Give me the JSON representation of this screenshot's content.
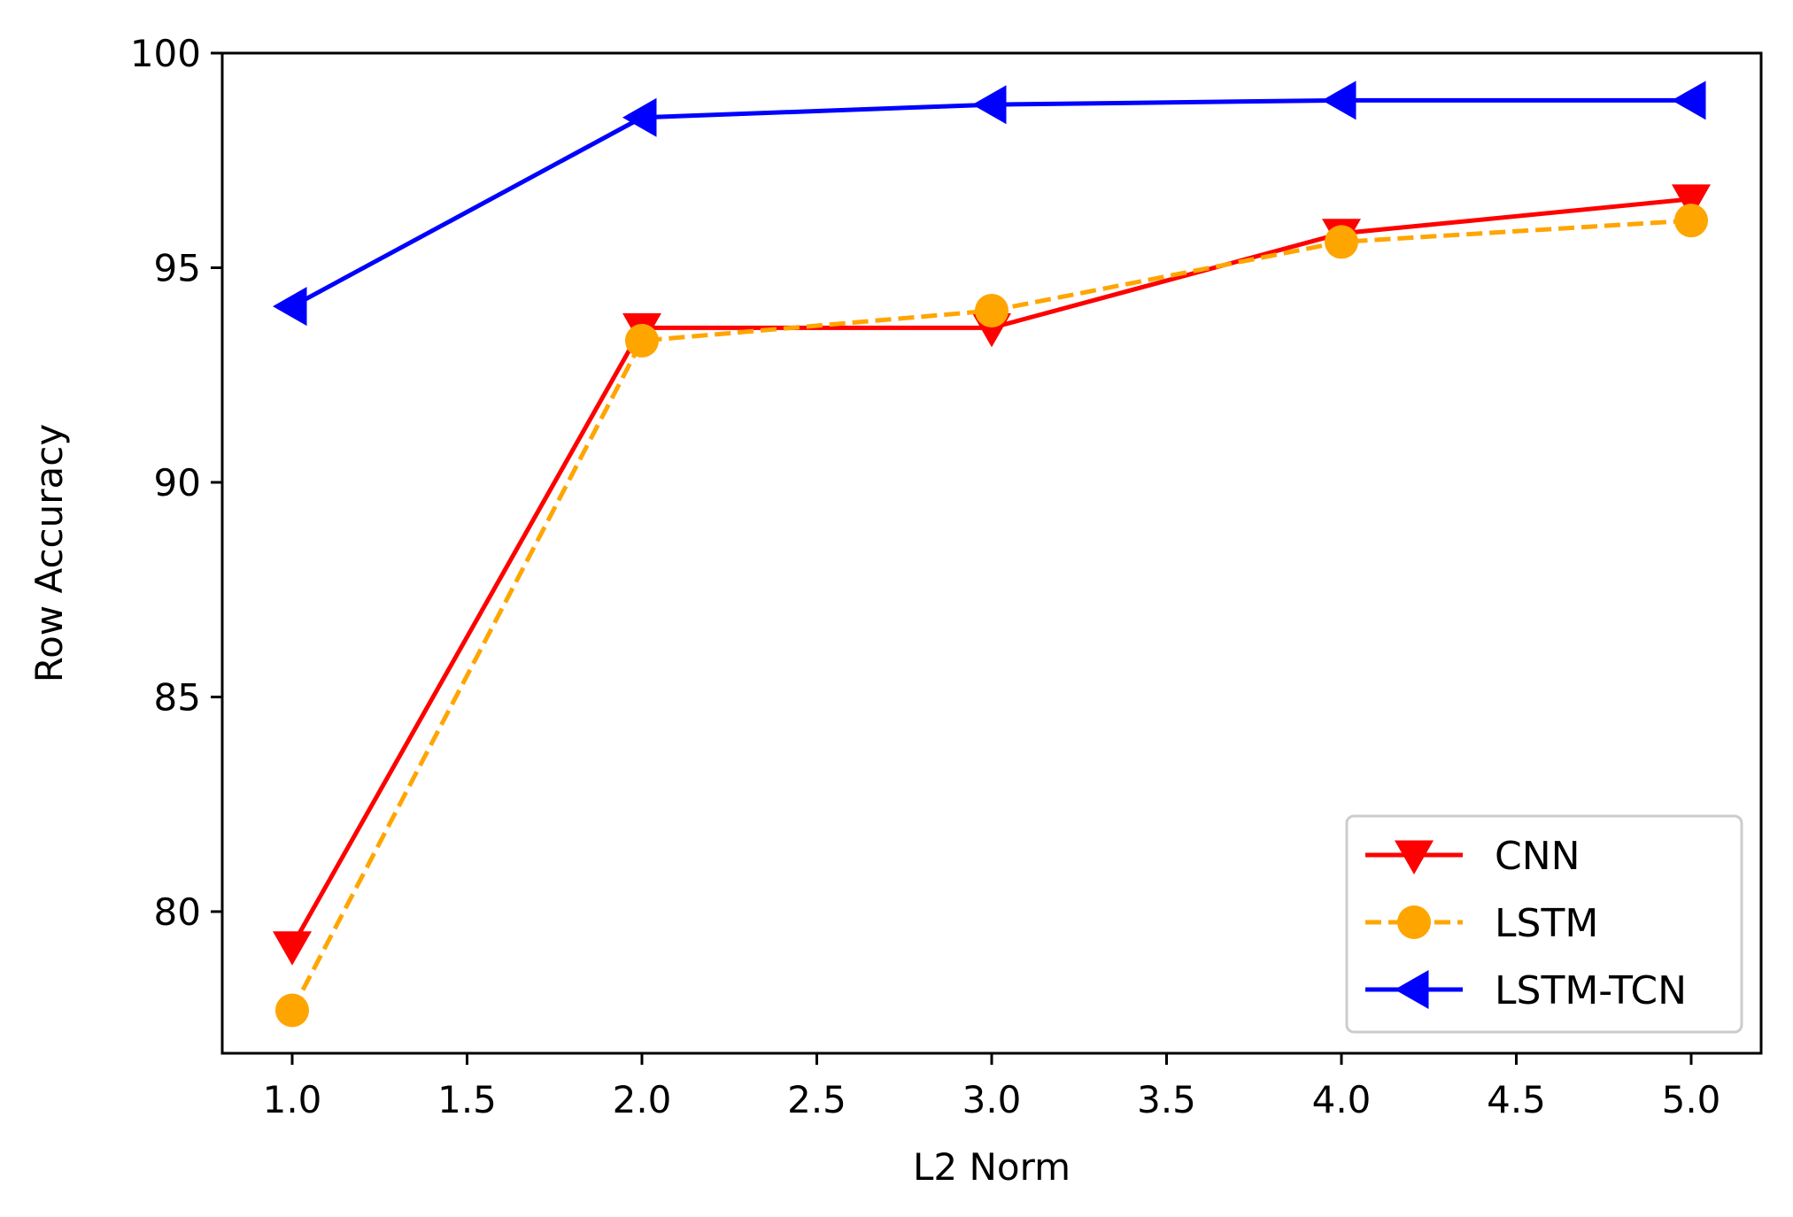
{
  "chart_data": {
    "type": "line",
    "title": "",
    "xlabel": "L2 Norm",
    "ylabel": "Row Accuracy",
    "x": [
      1.0,
      2.0,
      3.0,
      4.0,
      5.0
    ],
    "xlim": [
      0.8,
      5.2
    ],
    "ylim": [
      76.7,
      100
    ],
    "xticks": [
      1.0,
      1.5,
      2.0,
      2.5,
      3.0,
      3.5,
      4.0,
      4.5,
      5.0
    ],
    "xtick_labels": [
      "1.0",
      "1.5",
      "2.0",
      "2.5",
      "3.0",
      "3.5",
      "4.0",
      "4.5",
      "5.0"
    ],
    "yticks": [
      80,
      85,
      90,
      95,
      100
    ],
    "ytick_labels": [
      "80",
      "85",
      "90",
      "95",
      "100"
    ],
    "grid": false,
    "legend_position": "bottom-right",
    "series": [
      {
        "name": "CNN",
        "values": [
          79.2,
          93.6,
          93.6,
          95.8,
          96.6
        ],
        "color": "#ff0000",
        "line_style": "solid",
        "marker": "triangle-down"
      },
      {
        "name": "LSTM",
        "values": [
          77.7,
          93.3,
          94.0,
          95.6,
          96.1
        ],
        "color": "#ffa500",
        "line_style": "dashed",
        "marker": "circle"
      },
      {
        "name": "LSTM-TCN",
        "values": [
          94.1,
          98.5,
          98.8,
          98.9,
          98.9
        ],
        "color": "#0000ff",
        "line_style": "solid",
        "marker": "triangle-left"
      }
    ]
  }
}
